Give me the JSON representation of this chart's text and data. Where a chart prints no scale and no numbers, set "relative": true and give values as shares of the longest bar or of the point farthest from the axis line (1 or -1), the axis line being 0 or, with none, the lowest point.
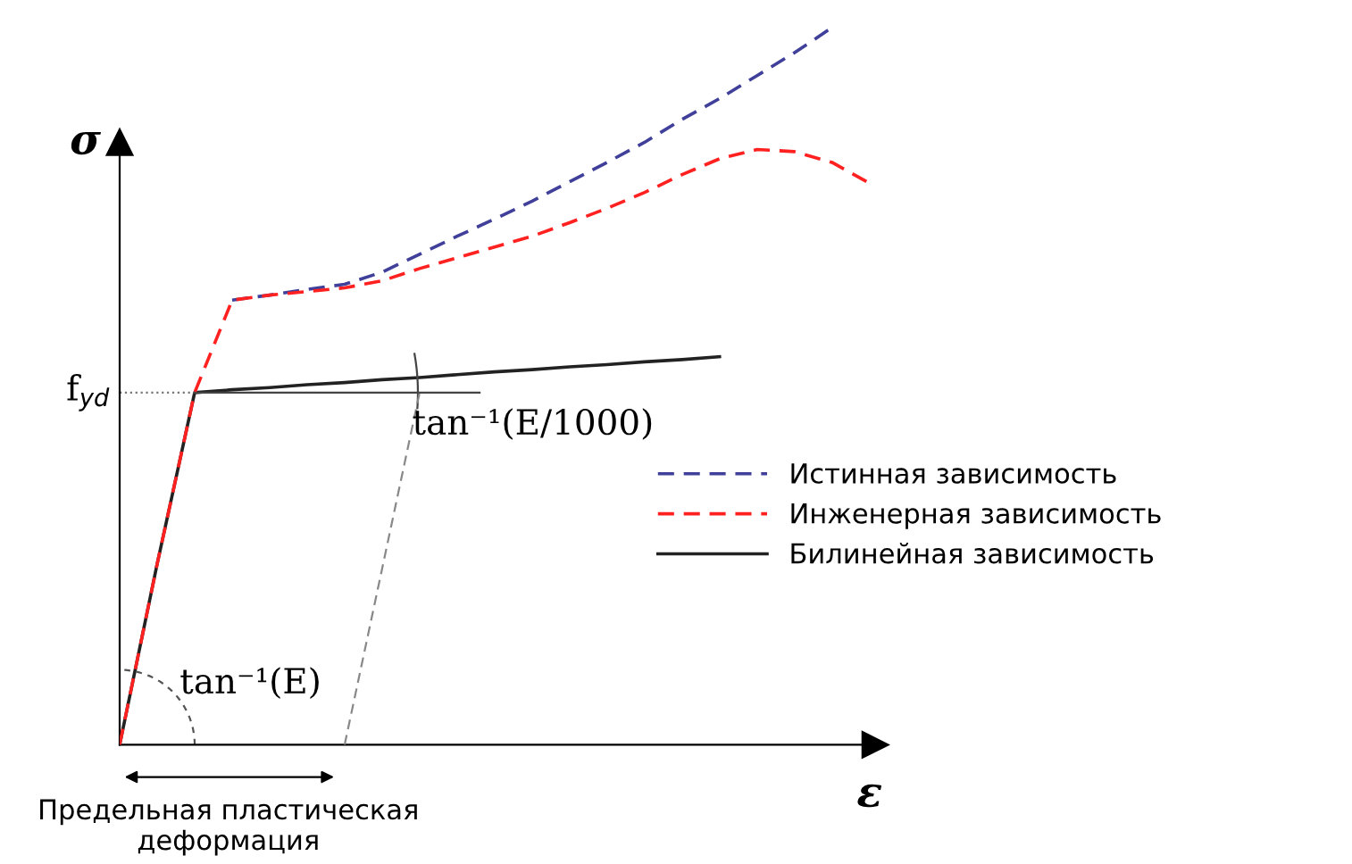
{
  "chart_data": {
    "type": "line",
    "relative": true,
    "tick_labels": false,
    "grid": false,
    "legend": "right",
    "marker": "none",
    "xlabel": "ε",
    "ylabel": "σ",
    "categories": [
      null,
      null,
      null,
      null,
      null,
      null,
      null,
      null,
      null,
      null,
      null,
      null,
      null,
      null,
      null,
      null,
      null,
      null,
      null,
      null,
      null
    ],
    "series": [
      {
        "name": "Истинная зависимость",
        "color": "#40409a",
        "line_style": "dashed",
        "values": [
          null,
          null,
          null,
          0.62,
          0.627,
          0.635,
          0.642,
          0.659,
          0.684,
          0.709,
          0.733,
          0.758,
          0.785,
          0.812,
          0.84,
          0.872,
          0.901,
          0.933,
          0.965,
          1.0,
          null
        ]
      },
      {
        "name": "Инженерная зависимость",
        "color": "#ff2020",
        "line_style": "dashed",
        "values": [
          0,
          0.252,
          0.491,
          0.62,
          0.627,
          0.632,
          0.637,
          0.647,
          0.664,
          0.679,
          0.694,
          0.709,
          0.728,
          0.748,
          0.77,
          0.795,
          0.817,
          0.83,
          0.827,
          0.812,
          0.783
        ]
      },
      {
        "name": "Билинейная зависимость",
        "color": "#222222",
        "line_style": "solid",
        "values": [
          0,
          0.252,
          0.491,
          0.495,
          0.498,
          0.502,
          0.505,
          0.509,
          0.512,
          0.516,
          0.52,
          0.523,
          0.527,
          0.53,
          0.534,
          0.537,
          0.541,
          null,
          null,
          null,
          null
        ]
      },
      {
        "color": "#888888",
        "line_style": "dashed",
        "values": [
          null,
          null,
          null,
          null,
          null,
          null,
          0,
          null,
          0.491,
          null,
          null,
          null,
          null,
          null,
          null,
          null,
          null,
          null,
          null,
          null,
          null
        ]
      }
    ],
    "ref_lines": [
      {
        "axis": "y",
        "value": 0.491,
        "label": "f$_{yd}$",
        "color": "#777777",
        "line_style": "dotted"
      }
    ],
    "annotations": [
      "tan⁻¹(E/1000)",
      "tan⁻¹(E)",
      "Предельная пластическая\nдеформация"
    ]
  }
}
